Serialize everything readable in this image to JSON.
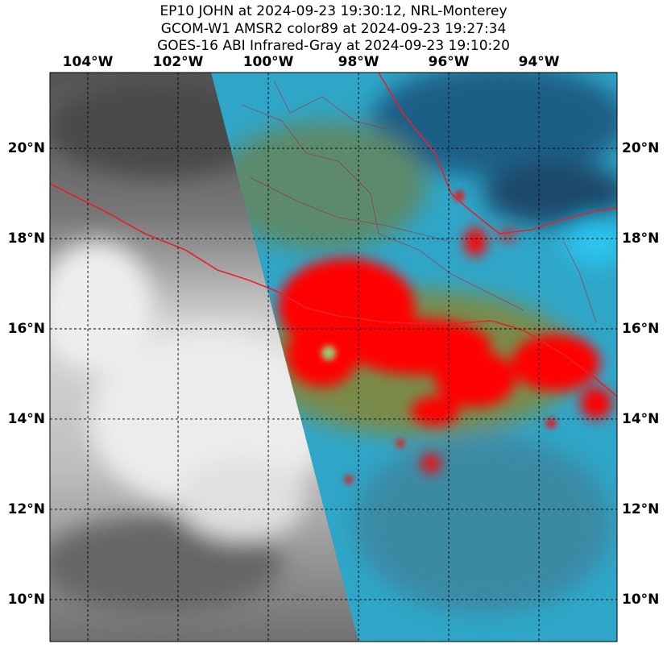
{
  "map": {
    "title": [
      "EP10 JOHN at 2024-09-23 19:30:12, NRL-Monterey",
      "GCOM-W1 AMSR2 color89 at 2024-09-23 19:27:34",
      "GOES-16 ABI Infrared-Gray at 2024-09-23 19:10:20"
    ],
    "xlim": [
      -104.84,
      -92.27
    ],
    "ylim": [
      9.07,
      21.68
    ],
    "xticks": [
      {
        "value": -104,
        "label": "104°W"
      },
      {
        "value": -102,
        "label": "102°W"
      },
      {
        "value": -100,
        "label": "100°W"
      },
      {
        "value": -98,
        "label": "98°W"
      },
      {
        "value": -96,
        "label": "96°W"
      },
      {
        "value": -94,
        "label": "94°W"
      }
    ],
    "yticks": [
      {
        "value": 10,
        "label": "10°N"
      },
      {
        "value": 12,
        "label": "12°N"
      },
      {
        "value": 14,
        "label": "14°N"
      },
      {
        "value": 16,
        "label": "16°N"
      },
      {
        "value": 18,
        "label": "18°N"
      },
      {
        "value": 20,
        "label": "20°N"
      }
    ]
  }
}
